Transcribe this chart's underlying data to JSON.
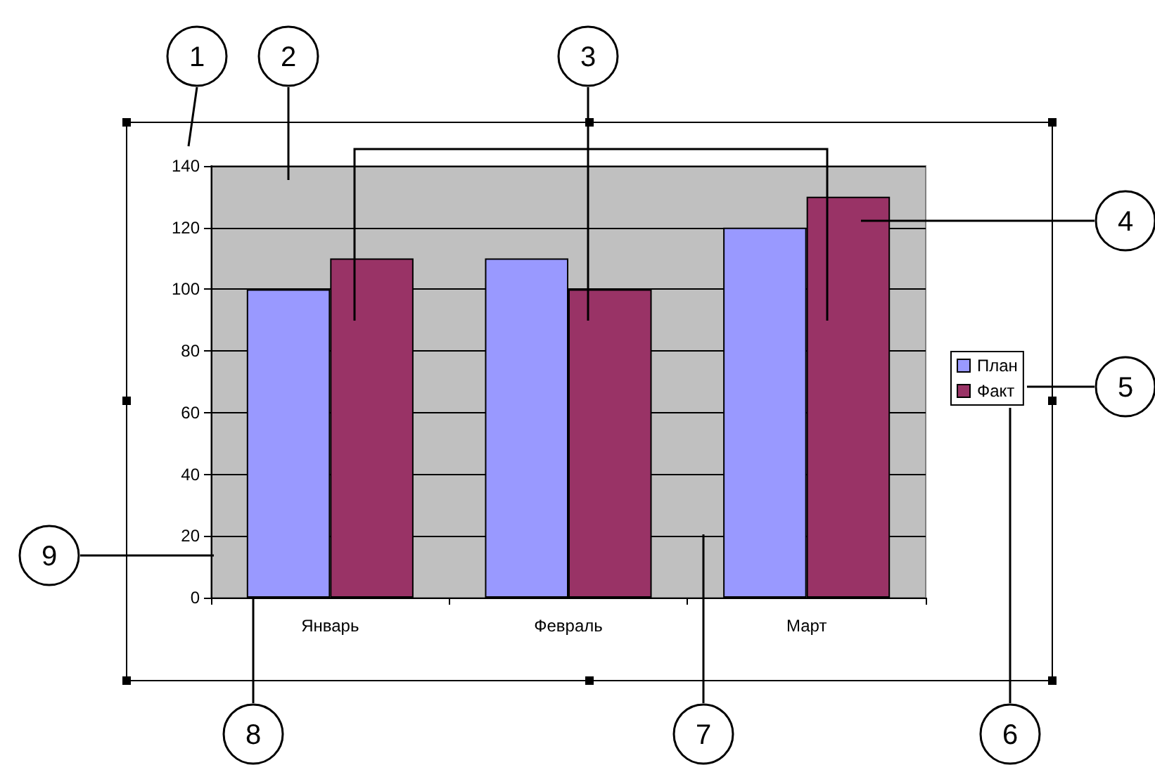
{
  "chart_data": {
    "type": "bar",
    "categories": [
      "Январь",
      "Февраль",
      "Март"
    ],
    "series": [
      {
        "name": "План",
        "color": "#9999ff",
        "values": [
          100,
          110,
          120
        ]
      },
      {
        "name": "Факт",
        "color": "#993366",
        "values": [
          110,
          100,
          130
        ]
      }
    ],
    "ylim": [
      0,
      140
    ],
    "yticks": [
      0,
      20,
      40,
      60,
      80,
      100,
      120,
      140
    ],
    "grid": "y",
    "legend": "right",
    "annotations": [
      "1",
      "2",
      "3",
      "4",
      "5",
      "6",
      "7",
      "8",
      "9"
    ]
  }
}
